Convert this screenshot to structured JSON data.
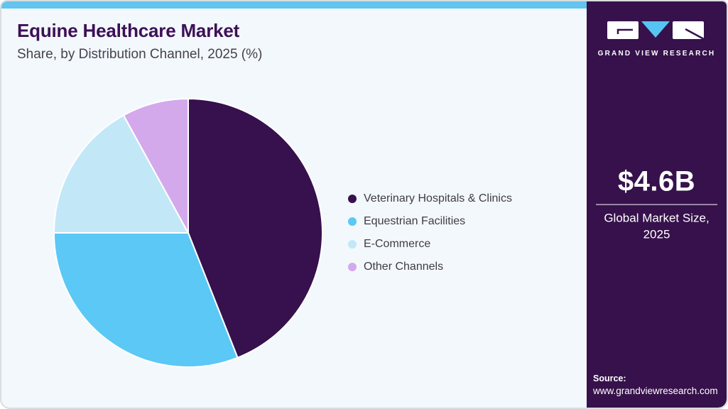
{
  "header": {
    "title": "Equine Healthcare Market",
    "subtitle": "Share, by Distribution Channel, 2025 (%)"
  },
  "chart_data": {
    "type": "pie",
    "title": "Equine Healthcare Market Share, by Distribution Channel, 2025 (%)",
    "unit": "%",
    "labels": [
      "Veterinary Hospitals & Clinics",
      "Equestrian Facilities",
      "E-Commerce",
      "Other Channels"
    ],
    "values": [
      44,
      31,
      17,
      8
    ],
    "colors": [
      "#36114d",
      "#5bc8f5",
      "#c2e8f8",
      "#d3a9eb"
    ],
    "start_angle_deg": 0,
    "direction": "clockwise",
    "legend_position": "right",
    "slice_gap_color": "#ffffff"
  },
  "sidebar": {
    "brand": "GRAND VIEW RESEARCH",
    "market_size_value": "$4.6B",
    "market_size_label": "Global Market Size, 2025",
    "source_label": "Source:",
    "source_url": "www.grandviewresearch.com"
  },
  "colors": {
    "accent_top_bar": "#62c4ef",
    "sidebar_bg": "#36114b",
    "panel_bg": "#f3f8fc",
    "title": "#3d1057",
    "subtitle": "#45424e",
    "legend_text": "#403c48",
    "logo_triangle": "#56c5f2"
  }
}
